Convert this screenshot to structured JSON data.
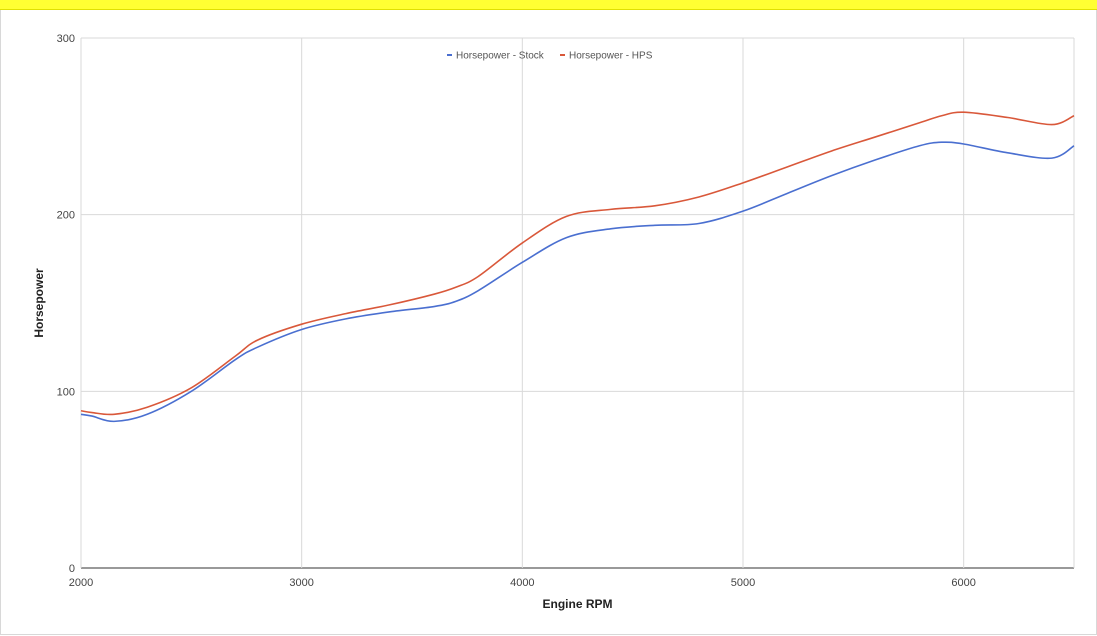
{
  "chart_data": {
    "type": "line",
    "xlabel": "Engine RPM",
    "ylabel": "Horsepower",
    "xlim": [
      2000,
      6500
    ],
    "ylim": [
      0,
      300
    ],
    "xticks": [
      "2000",
      "3000",
      "4000",
      "5000",
      "6000"
    ],
    "yticks": [
      "0",
      "100",
      "200",
      "300"
    ],
    "grid": true,
    "legend_position": "top-center",
    "series": [
      {
        "name": "Horsepower - Stock",
        "color": "#4a6fd0",
        "x": [
          2000,
          2050,
          2150,
          2300,
          2500,
          2700,
          2800,
          3000,
          3200,
          3400,
          3600,
          3700,
          3800,
          4000,
          4200,
          4400,
          4600,
          4800,
          5000,
          5200,
          5400,
          5600,
          5800,
          5900,
          6000,
          6200,
          6400,
          6500
        ],
        "values": [
          87,
          86,
          83,
          87,
          100,
          118,
          125,
          135,
          141,
          145,
          148,
          151,
          157,
          173,
          187,
          192,
          194,
          195,
          202,
          212,
          222,
          231,
          239,
          241,
          240,
          235,
          232,
          239
        ]
      },
      {
        "name": "Horsepower - HPS",
        "color": "#d9583a",
        "x": [
          2000,
          2050,
          2150,
          2300,
          2500,
          2700,
          2800,
          3000,
          3200,
          3400,
          3600,
          3700,
          3800,
          4000,
          4200,
          4400,
          4600,
          4800,
          5000,
          5200,
          5400,
          5600,
          5800,
          5900,
          6000,
          6200,
          6400,
          6500
        ],
        "values": [
          89,
          88,
          87,
          91,
          102,
          120,
          129,
          138,
          144,
          149,
          155,
          159,
          165,
          184,
          199,
          203,
          205,
          210,
          218,
          227,
          236,
          244,
          252,
          256,
          258,
          255,
          251,
          256
        ]
      }
    ]
  }
}
